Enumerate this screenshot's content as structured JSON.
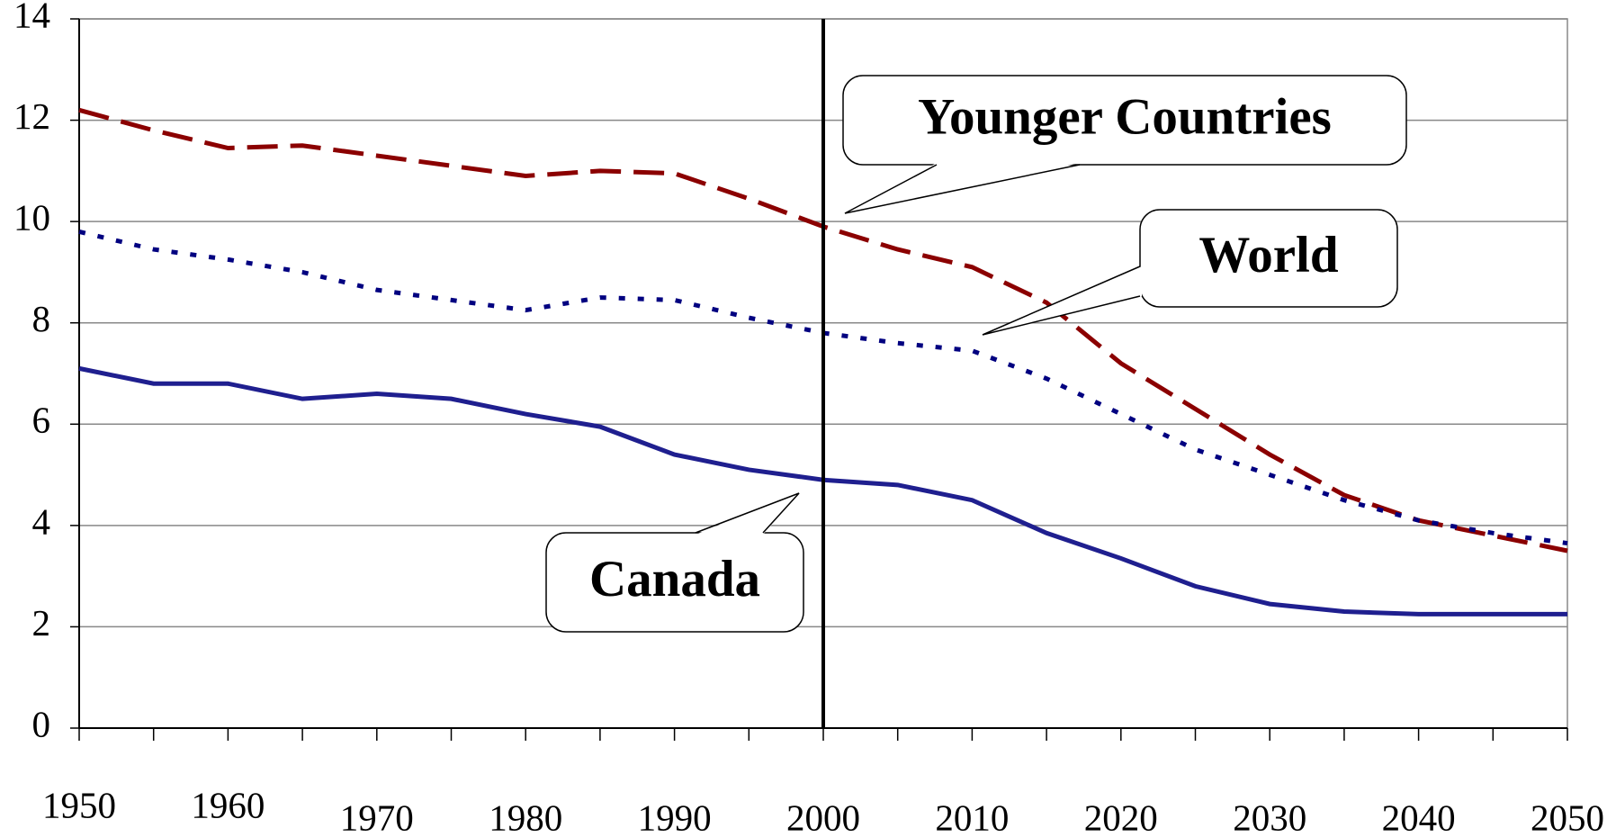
{
  "chart_data": {
    "type": "line",
    "x": [
      1950,
      1955,
      1960,
      1965,
      1970,
      1975,
      1980,
      1985,
      1990,
      1995,
      2000,
      2005,
      2010,
      2015,
      2020,
      2025,
      2030,
      2035,
      2040,
      2045,
      2050
    ],
    "series": [
      {
        "name": "Younger Countries",
        "color": "#8b0000",
        "style": "dashed",
        "values": [
          12.2,
          11.8,
          11.45,
          11.5,
          11.3,
          11.1,
          10.9,
          11.0,
          10.95,
          10.45,
          9.9,
          9.45,
          9.1,
          8.4,
          7.2,
          6.3,
          5.4,
          4.6,
          4.1,
          3.8,
          3.5
        ]
      },
      {
        "name": "World",
        "color": "#000080",
        "style": "dotted",
        "values": [
          9.8,
          9.45,
          9.25,
          9.0,
          8.65,
          8.45,
          8.25,
          8.5,
          8.45,
          8.1,
          7.8,
          7.6,
          7.45,
          6.9,
          6.2,
          5.5,
          5.0,
          4.5,
          4.1,
          3.85,
          3.65
        ]
      },
      {
        "name": "Canada",
        "color": "#1f1f8f",
        "style": "solid",
        "values": [
          7.1,
          6.8,
          6.8,
          6.5,
          6.6,
          6.5,
          6.2,
          5.95,
          5.4,
          5.1,
          4.9,
          4.8,
          4.5,
          3.85,
          3.35,
          2.8,
          2.45,
          2.3,
          2.25,
          2.25,
          2.25
        ]
      }
    ],
    "xlim": [
      1950,
      2050
    ],
    "xticks": [
      1950,
      1960,
      1970,
      1980,
      1990,
      2000,
      2010,
      2020,
      2030,
      2040,
      2050
    ],
    "ylim": [
      0,
      14
    ],
    "yticks": [
      0,
      2,
      4,
      6,
      8,
      10,
      12,
      14
    ],
    "grid": true,
    "vline": 2000
  }
}
